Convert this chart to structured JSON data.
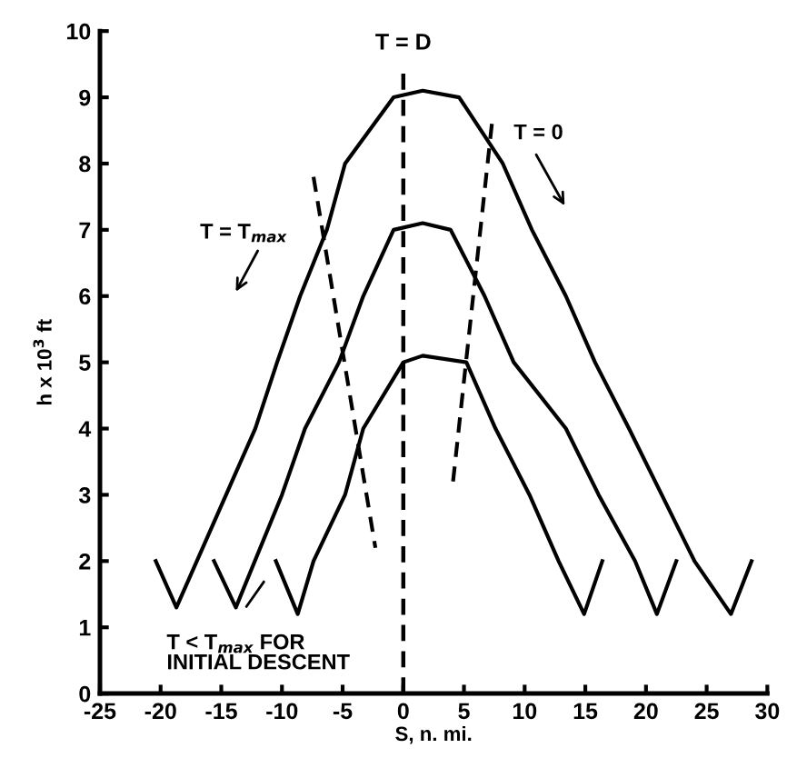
{
  "chart_data": {
    "type": "line",
    "xlabel": "S, n. mi.",
    "ylabel": "h x 10$^{3}$ ft",
    "xlim": [
      -25,
      30
    ],
    "ylim": [
      0,
      10
    ],
    "xticks": [
      -25,
      -20,
      -15,
      -10,
      -5,
      0,
      5,
      10,
      15,
      20,
      25,
      30
    ],
    "yticks": [
      0,
      1,
      2,
      3,
      4,
      5,
      6,
      7,
      8,
      9,
      10
    ],
    "grid": false,
    "marker": "none",
    "line_style": "solid",
    "series": [
      {
        "color": "#000000",
        "x": [
          -20.4,
          -18.7,
          -12.2,
          -10.4,
          -8.5,
          -6.3,
          -4.8,
          -0.8,
          1.6,
          4.6,
          8.2,
          10.6,
          13.4,
          15.8,
          18.6,
          21.3,
          24.0,
          27.0,
          28.7
        ],
        "values": [
          2,
          1.3,
          4,
          5,
          6,
          7,
          8,
          9,
          9.1,
          9,
          8,
          7,
          6,
          5,
          4,
          3,
          2,
          1.2,
          2
        ]
      },
      {
        "color": "#000000",
        "x": [
          -15.6,
          -13.8,
          -10.0,
          -8.1,
          -5.3,
          -3.3,
          -0.8,
          1.6,
          3.9,
          6.7,
          9.1,
          13.4,
          16.1,
          19.1,
          20.9,
          22.5
        ],
        "values": [
          2,
          1.3,
          3,
          4,
          5,
          6,
          7,
          7.1,
          7,
          6,
          5,
          4,
          3,
          2,
          1.2,
          2
        ]
      },
      {
        "color": "#000000",
        "x": [
          -10.5,
          -8.7,
          -7.4,
          -4.8,
          -3.3,
          0,
          1.6,
          5.2,
          7.6,
          10.4,
          12.8,
          14.9,
          16.4
        ],
        "values": [
          2,
          1.2,
          2,
          3,
          4,
          5,
          5.1,
          5,
          4,
          3,
          2,
          1.2,
          2
        ]
      },
      {
        "color": "#000000",
        "line_style": "dashed",
        "x": [
          -7.4,
          -2.3
        ],
        "values": [
          7.8,
          2.2
        ]
      },
      {
        "color": "#000000",
        "line_style": "dashed",
        "x": [
          7.3,
          4.1
        ],
        "values": [
          8.6,
          3.2
        ]
      }
    ],
    "ref_lines": [
      {
        "axis": "x",
        "value": 0,
        "label": "T = D",
        "line_style": "dashed",
        "color": "#000000"
      }
    ],
    "annotations": [
      "T = T$_{max}$",
      "T = 0",
      "T < T$_{max}$ FOR\nINITIAL DESCENT"
    ]
  }
}
